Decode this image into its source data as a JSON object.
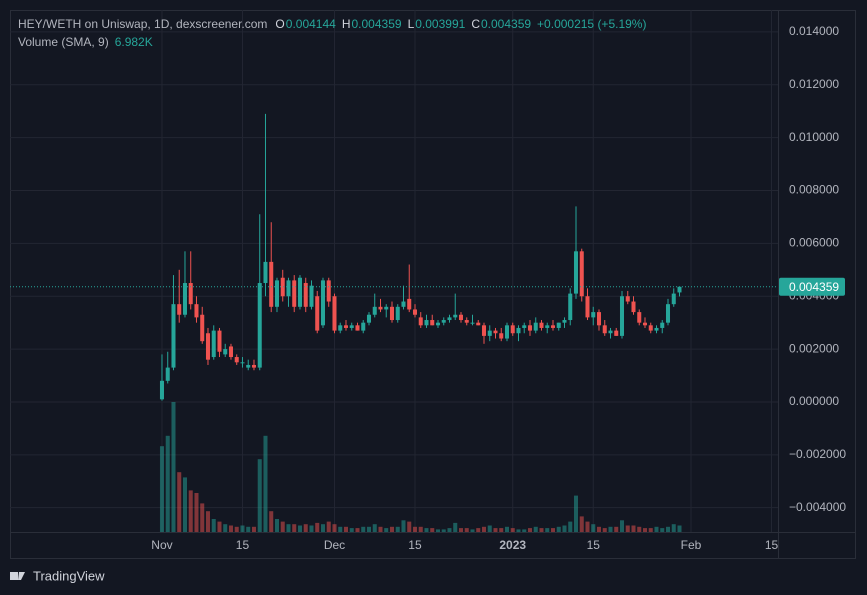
{
  "chart_data": {
    "type": "candlestick",
    "title": "HEY/WETH on Uniswap, 1D, dexscreener.com",
    "legend": {
      "open_label": "O",
      "open": "0.004144",
      "high_label": "H",
      "high": "0.004359",
      "low_label": "L",
      "low": "0.003991",
      "close_label": "C",
      "close": "0.004359",
      "change": "+0.000215 (+5.19%)",
      "volume_title": "Volume (SMA, 9)",
      "volume_sma": "6.982K"
    },
    "footer": "TradingView",
    "up_color": "#26a69a",
    "down_color": "#ef5350",
    "x": [
      0,
      1,
      2,
      3,
      4,
      5,
      6,
      7,
      8,
      9,
      10,
      11,
      12,
      13,
      14,
      15,
      16,
      17,
      18,
      19,
      20,
      21,
      22,
      23,
      24,
      25,
      26,
      27,
      28,
      29,
      30,
      31,
      32,
      33,
      34,
      35,
      36,
      37,
      38,
      39,
      40,
      41,
      42,
      43,
      44,
      45,
      46,
      47,
      48,
      49,
      50,
      51,
      52,
      53,
      54,
      55,
      56,
      57,
      58,
      59,
      60,
      61,
      62,
      63,
      64,
      65,
      66,
      67,
      68,
      69,
      70,
      71,
      72,
      73,
      74,
      75,
      76,
      77,
      78,
      79,
      80,
      81,
      82,
      83,
      84,
      85,
      86,
      87,
      88,
      89,
      90
    ],
    "open": [
      0.0001,
      0.0008,
      0.0013,
      0.0037,
      0.0033,
      0.0045,
      0.0037,
      0.0033,
      0.0026,
      0.0017,
      0.0027,
      0.0018,
      0.0021,
      0.0017,
      0.0015,
      0.0013,
      0.0014,
      0.0013,
      0.0045,
      0.0053,
      0.0036,
      0.0047,
      0.004,
      0.0046,
      0.0036,
      0.0045,
      0.0036,
      0.004,
      0.0029,
      0.0046,
      0.004,
      0.0027,
      0.0029,
      0.0028,
      0.0029,
      0.0027,
      0.003,
      0.0033,
      0.0036,
      0.0035,
      0.0036,
      0.0031,
      0.0036,
      0.0039,
      0.0035,
      0.0032,
      0.0029,
      0.0031,
      0.0029,
      0.003,
      0.0031,
      0.0032,
      0.0033,
      0.0031,
      0.003,
      0.003,
      0.0029,
      0.0025,
      0.0027,
      0.0026,
      0.0024,
      0.0029,
      0.0026,
      0.0028,
      0.0029,
      0.0027,
      0.003,
      0.0028,
      0.0029,
      0.0028,
      0.003,
      0.0031,
      0.0041,
      0.0057,
      0.004,
      0.0032,
      0.0034,
      0.0029,
      0.0026,
      0.0027,
      0.0025,
      0.004,
      0.0038,
      0.0034,
      0.003,
      0.0029,
      0.0027,
      0.0028,
      0.003,
      0.0037,
      0.004144
    ],
    "high": [
      0.0018,
      0.0019,
      0.0048,
      0.005,
      0.0057,
      0.0057,
      0.004,
      0.0036,
      0.0028,
      0.0029,
      0.0028,
      0.0022,
      0.0022,
      0.0018,
      0.0017,
      0.0016,
      0.0016,
      0.0071,
      0.0109,
      0.0068,
      0.0047,
      0.005,
      0.0047,
      0.0048,
      0.0048,
      0.0047,
      0.0046,
      0.0042,
      0.0047,
      0.0047,
      0.0041,
      0.003,
      0.0031,
      0.003,
      0.003,
      0.0031,
      0.0034,
      0.0041,
      0.0039,
      0.0037,
      0.0038,
      0.0037,
      0.0044,
      0.0052,
      0.0037,
      0.0034,
      0.0033,
      0.0033,
      0.0031,
      0.0032,
      0.0033,
      0.0041,
      0.0034,
      0.0032,
      0.0033,
      0.0031,
      0.003,
      0.0029,
      0.0028,
      0.0028,
      0.003,
      0.003,
      0.0029,
      0.003,
      0.0031,
      0.0032,
      0.0031,
      0.003,
      0.0031,
      0.003,
      0.0032,
      0.0043,
      0.0074,
      0.0058,
      0.0043,
      0.0036,
      0.0035,
      0.0031,
      0.0028,
      0.0028,
      0.0042,
      0.0042,
      0.004,
      0.0035,
      0.0032,
      0.003,
      0.0029,
      0.0031,
      0.0039,
      0.0043,
      0.004359
    ],
    "low": [
      5e-05,
      0.0007,
      0.0012,
      0.003,
      0.0032,
      0.0035,
      0.003,
      0.0022,
      0.0014,
      0.0016,
      0.0017,
      0.0017,
      0.0016,
      0.0014,
      0.0013,
      0.0012,
      0.0012,
      0.0012,
      0.004,
      0.0034,
      0.0034,
      0.0038,
      0.0036,
      0.0034,
      0.0035,
      0.0034,
      0.0035,
      0.0026,
      0.0028,
      0.0036,
      0.0026,
      0.0026,
      0.0027,
      0.0027,
      0.0027,
      0.0026,
      0.0029,
      0.0032,
      0.0034,
      0.0032,
      0.003,
      0.003,
      0.0035,
      0.0034,
      0.0032,
      0.0028,
      0.0028,
      0.0029,
      0.0028,
      0.0029,
      0.003,
      0.0031,
      0.003,
      0.0029,
      0.0029,
      0.0029,
      0.0022,
      0.0023,
      0.0024,
      0.0023,
      0.0023,
      0.0025,
      0.0023,
      0.0026,
      0.0025,
      0.0026,
      0.0027,
      0.0026,
      0.0027,
      0.0027,
      0.0028,
      0.0029,
      0.0039,
      0.0038,
      0.0031,
      0.0029,
      0.0027,
      0.0025,
      0.0024,
      0.0025,
      0.0024,
      0.0037,
      0.0033,
      0.0029,
      0.0028,
      0.0026,
      0.0026,
      0.0026,
      0.0029,
      0.0036,
      0.003991
    ],
    "close": [
      0.0008,
      0.0013,
      0.0037,
      0.0033,
      0.0045,
      0.0037,
      0.0032,
      0.0023,
      0.0016,
      0.0027,
      0.0019,
      0.002,
      0.0017,
      0.0015,
      0.0015,
      0.0014,
      0.0013,
      0.0045,
      0.0053,
      0.0036,
      0.0046,
      0.004,
      0.0046,
      0.0036,
      0.0047,
      0.0036,
      0.0044,
      0.0027,
      0.0046,
      0.0038,
      0.0027,
      0.0029,
      0.0028,
      0.0029,
      0.0027,
      0.003,
      0.0033,
      0.0036,
      0.0035,
      0.0036,
      0.0031,
      0.0036,
      0.0038,
      0.0035,
      0.0033,
      0.0029,
      0.0031,
      0.0029,
      0.003,
      0.0031,
      0.0032,
      0.0033,
      0.0031,
      0.003,
      0.003,
      0.0029,
      0.0025,
      0.0027,
      0.0026,
      0.0024,
      0.0029,
      0.0026,
      0.0028,
      0.0029,
      0.0027,
      0.003,
      0.0028,
      0.0029,
      0.0028,
      0.003,
      0.0031,
      0.0041,
      0.0057,
      0.004,
      0.0032,
      0.0034,
      0.0029,
      0.0026,
      0.0027,
      0.0025,
      0.004,
      0.0038,
      0.0034,
      0.003,
      0.0029,
      0.0027,
      0.0028,
      0.003,
      0.0037,
      0.0041,
      0.004359
    ],
    "volume": [
      33000,
      37000,
      50000,
      23000,
      21000,
      16000,
      15000,
      11000,
      8000,
      5000,
      4000,
      3000,
      2500,
      2000,
      2500,
      2000,
      2000,
      28000,
      37000,
      8000,
      5000,
      4000,
      3000,
      3000,
      2500,
      3000,
      2500,
      3500,
      3000,
      4000,
      3000,
      2000,
      2000,
      1500,
      1500,
      2000,
      2000,
      3000,
      2000,
      1500,
      2000,
      2000,
      4500,
      4000,
      2000,
      2000,
      1500,
      1500,
      1000,
      1000,
      1500,
      3500,
      1500,
      1500,
      1000,
      1500,
      2000,
      2500,
      1500,
      1500,
      2000,
      1500,
      1000,
      1000,
      1500,
      2000,
      1500,
      1500,
      1500,
      2000,
      2500,
      4000,
      14000,
      6000,
      4000,
      3000,
      2000,
      1500,
      2000,
      2000,
      4500,
      2500,
      2500,
      2000,
      1500,
      1500,
      2000,
      1500,
      2000,
      3000,
      2500
    ],
    "xlim": [
      -26.43,
      107.13
    ],
    "xticks": [
      {
        "value": 0,
        "label": "Nov"
      },
      {
        "value": 14,
        "label": "15"
      },
      {
        "value": 30,
        "label": "Dec"
      },
      {
        "value": 44,
        "label": "15"
      },
      {
        "value": 61,
        "label": "2023"
      },
      {
        "value": 75,
        "label": "15"
      },
      {
        "value": 92,
        "label": "Feb"
      },
      {
        "value": 106,
        "label": "15"
      }
    ],
    "ylim": [
      -0.00492,
      0.01483
    ],
    "yticks": [
      {
        "value": -0.004,
        "label": "−0.004000"
      },
      {
        "value": -0.002,
        "label": "−0.002000"
      },
      {
        "value": 0,
        "label": "0.000000"
      },
      {
        "value": 0.002,
        "label": "0.002000"
      },
      {
        "value": 0.004,
        "label": "0.004000"
      },
      {
        "value": 0.006,
        "label": "0.006000"
      },
      {
        "value": 0.008,
        "label": "0.008000"
      },
      {
        "value": 0.01,
        "label": "0.010000"
      },
      {
        "value": 0.012,
        "label": "0.012000"
      },
      {
        "value": 0.014,
        "label": "0.014000"
      }
    ],
    "grid": true
  }
}
